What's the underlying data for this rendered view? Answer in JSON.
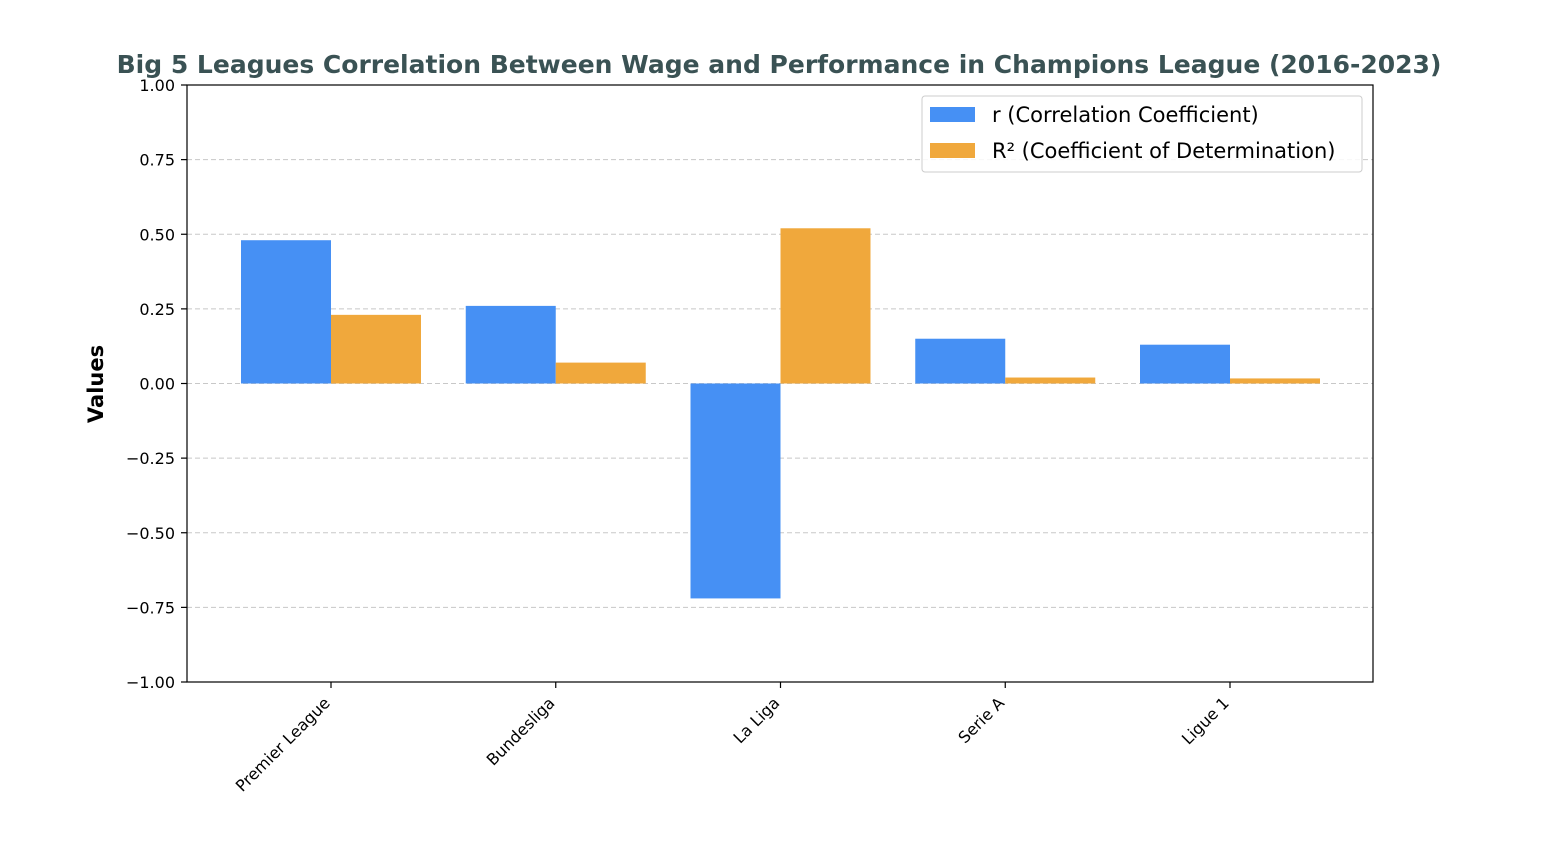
{
  "chart_data": {
    "type": "bar",
    "title": "Big 5 Leagues Correlation Between Wage and Performance in Champions League (2016-2023)",
    "xlabel": "",
    "ylabel": "Values",
    "categories": [
      "Premier League",
      "Bundesliga",
      "La Liga",
      "Serie A",
      "Ligue 1"
    ],
    "series": [
      {
        "name": "r (Correlation Coefficient)",
        "values": [
          0.48,
          0.26,
          -0.72,
          0.15,
          0.13
        ],
        "color": "#4690f4"
      },
      {
        "name": "R² (Coefficient of Determination)",
        "values": [
          0.23,
          0.07,
          0.52,
          0.02,
          0.017
        ],
        "color": "#f0a83c"
      }
    ],
    "ylim": [
      -1.0,
      1.0
    ],
    "yticks": [
      "−1.00",
      "−0.75",
      "−0.50",
      "−0.25",
      "0.00",
      "0.25",
      "0.50",
      "0.75",
      "1.00"
    ],
    "ytick_values": [
      -1.0,
      -0.75,
      -0.5,
      -0.25,
      0.0,
      0.25,
      0.5,
      0.75,
      1.0
    ],
    "grid": "horizontal dashed",
    "legend_position": "top-right",
    "title_color": "#3a5254"
  }
}
